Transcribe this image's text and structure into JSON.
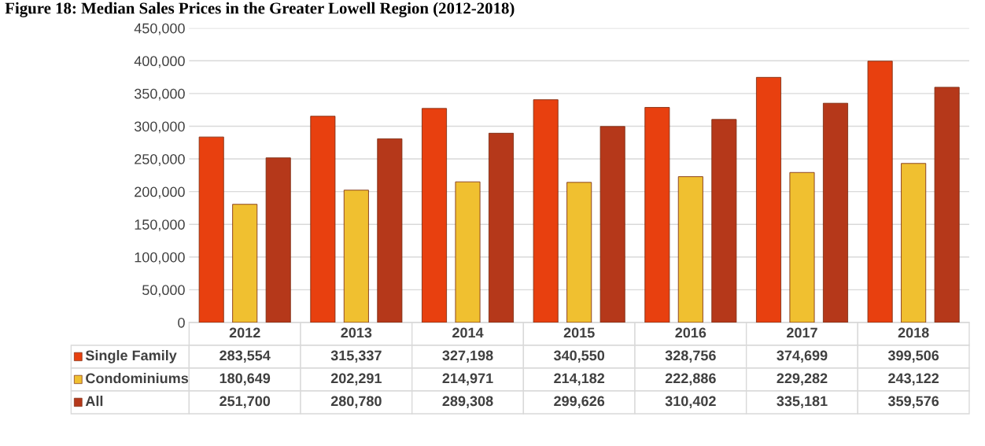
{
  "chart_data": {
    "type": "bar",
    "title": "Figure 18: Median Sales Prices in the Greater Lowell Region (2012-2018)",
    "categories": [
      "2012",
      "2013",
      "2014",
      "2015",
      "2016",
      "2017",
      "2018"
    ],
    "series": [
      {
        "name": "Single Family",
        "color": "#e8400f",
        "values": [
          283554,
          315337,
          327198,
          340550,
          328756,
          374699,
          399506
        ],
        "value_labels": [
          "283,554",
          "315,337",
          "327,198",
          "340,550",
          "328,756",
          "374,699",
          "399,506"
        ]
      },
      {
        "name": "Condominiums",
        "color": "#f0c030",
        "values": [
          180649,
          202291,
          214971,
          214182,
          222886,
          229282,
          243122
        ],
        "value_labels": [
          "180,649",
          "202,291",
          "214,971",
          "214,182",
          "222,886",
          "229,282",
          "243,122"
        ]
      },
      {
        "name": "All",
        "color": "#b5381a",
        "values": [
          251700,
          280780,
          289308,
          299626,
          310402,
          335181,
          359576
        ],
        "value_labels": [
          "251,700",
          "280,780",
          "289,308",
          "299,626",
          "310,402",
          "335,181",
          "359,576"
        ]
      }
    ],
    "ylim": [
      0,
      450000
    ],
    "yticks": [
      {
        "value": 0,
        "label": "0"
      },
      {
        "value": 50000,
        "label": "50,000"
      },
      {
        "value": 100000,
        "label": "100,000"
      },
      {
        "value": 150000,
        "label": "150,000"
      },
      {
        "value": 200000,
        "label": "200,000"
      },
      {
        "value": 250000,
        "label": "250,000"
      },
      {
        "value": 300000,
        "label": "300,000"
      },
      {
        "value": 350000,
        "label": "350,000"
      },
      {
        "value": 400000,
        "label": "400,000"
      },
      {
        "value": 450000,
        "label": "450,000"
      }
    ],
    "grid": "y",
    "legend": "left"
  }
}
